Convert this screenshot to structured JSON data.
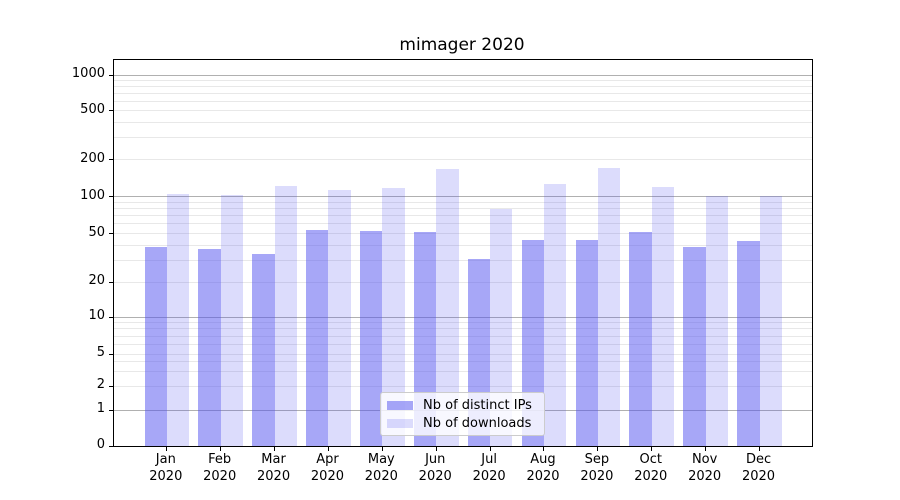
{
  "title": "mimager 2020",
  "chart_data": {
    "type": "bar",
    "title": "mimager 2020",
    "months": [
      "Jan",
      "Feb",
      "Mar",
      "Apr",
      "May",
      "Jun",
      "Jul",
      "Aug",
      "Sep",
      "Oct",
      "Nov",
      "Dec"
    ],
    "x_year": "2020",
    "series": [
      {
        "name": "Nb of distinct IPs",
        "values": [
          39,
          37,
          34,
          53,
          52,
          51,
          31,
          44,
          44,
          51,
          39,
          43
        ]
      },
      {
        "name": "Nb of downloads",
        "values": [
          106,
          103,
          121,
          113,
          118,
          168,
          80,
          126,
          170,
          120,
          102,
          101
        ]
      }
    ],
    "y_scale": "symlog",
    "y_ticks": [
      0,
      1,
      2,
      5,
      10,
      20,
      50,
      100,
      200,
      500,
      1000
    ],
    "y_major_gridlines": [
      1,
      10,
      100,
      1000
    ],
    "ylim": [
      0,
      1330
    ],
    "grid": true,
    "legend_position": "lower-center"
  },
  "colors": {
    "bar_ips": "rgba(80,80,240,0.5)",
    "bar_downloads": "rgba(80,80,240,0.2)",
    "grid_major": "#b0b0b0",
    "grid_minor": "#e8e8e8",
    "spine": "#000000",
    "text": "#000000",
    "legend_bg": "rgba(255,255,255,0.8)",
    "legend_border": "#cccccc"
  }
}
